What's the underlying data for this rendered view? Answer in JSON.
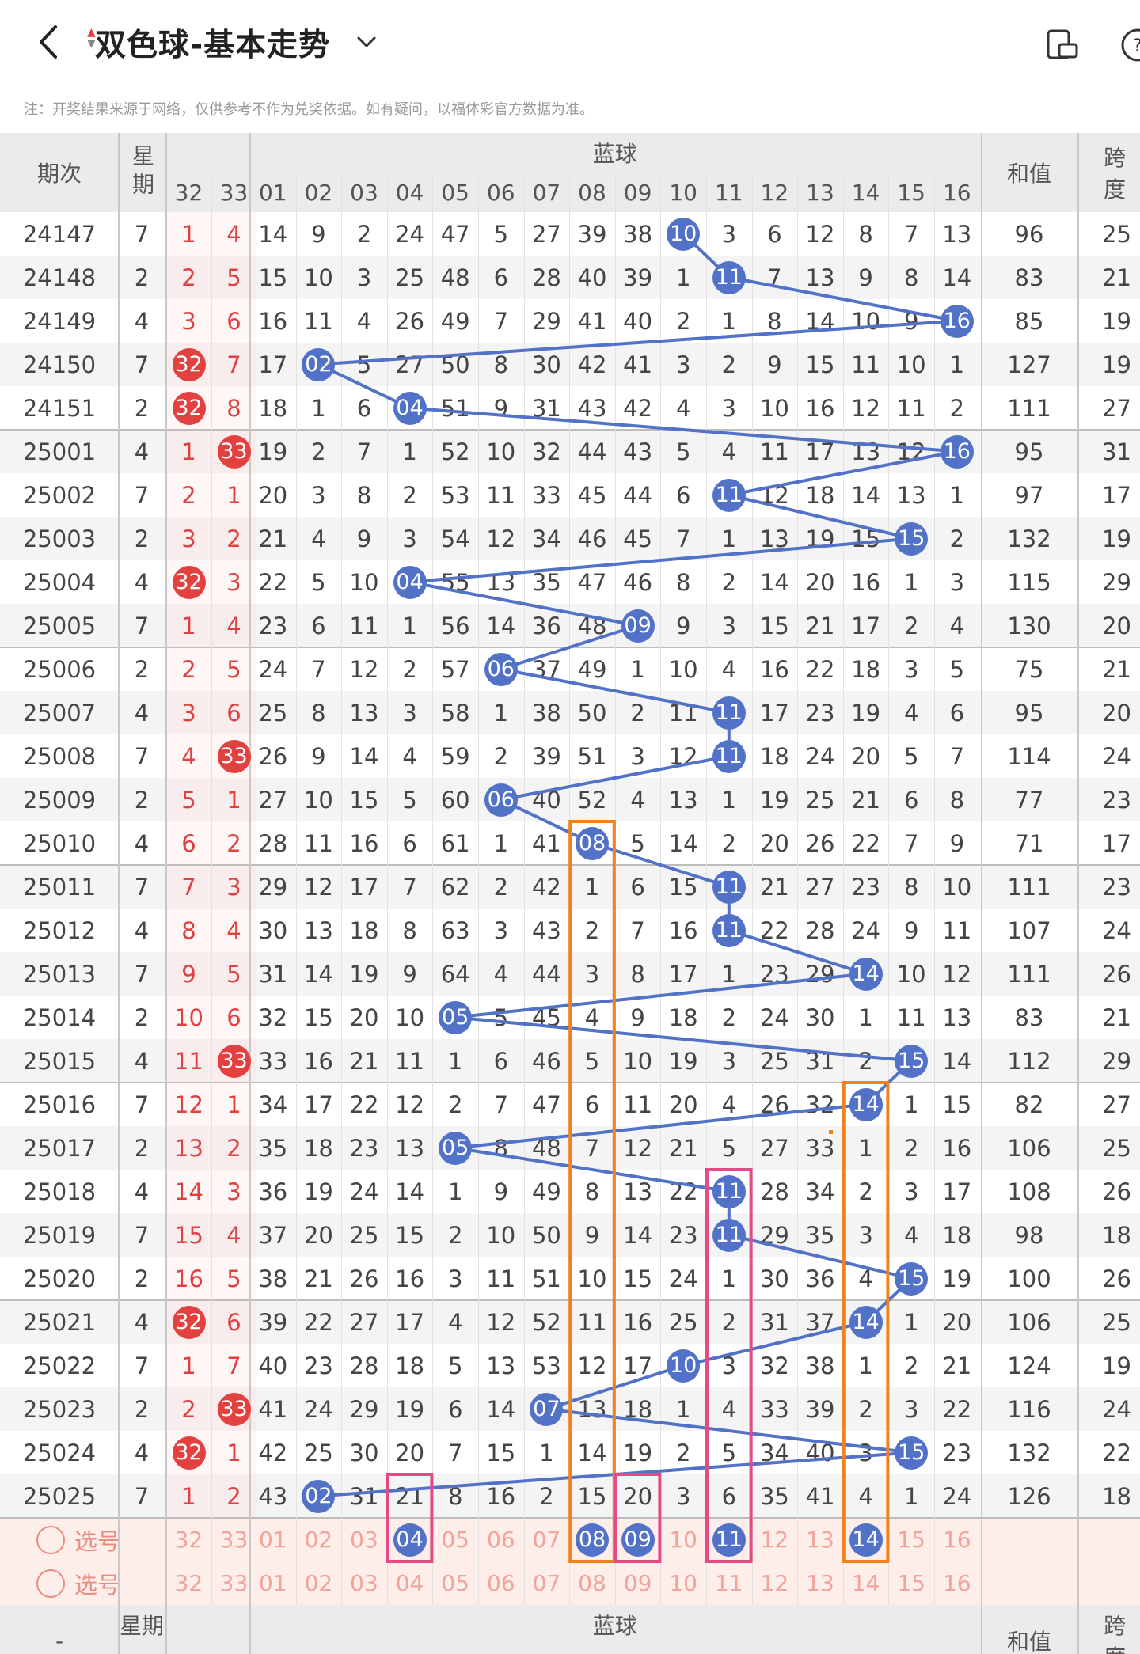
{
  "header": {
    "title": "双色球-基本走势",
    "back_icon": "back-arrow-icon",
    "dropdown_icon": "chevron-down-icon",
    "right_icons": [
      "screen-rotate-icon",
      "help-icon"
    ]
  },
  "note": "注：开奖结果来源于网络，仅供参考不作为兑奖依据。如有疑问，以福体彩官方数据为准。",
  "table": {
    "col_issue": "期次",
    "col_week": "星期",
    "col_blue_group": "蓝球",
    "col_sum": "和值",
    "col_span": "跨度",
    "red_cols": [
      "32",
      "33"
    ],
    "blue_cols": [
      "01",
      "02",
      "03",
      "04",
      "05",
      "06",
      "07",
      "08",
      "09",
      "10",
      "11",
      "12",
      "13",
      "14",
      "15",
      "16"
    ],
    "rows": [
      {
        "issue": "24147",
        "week": "7",
        "r32": "1",
        "r33": "4",
        "r32ball": false,
        "r33ball": false,
        "blue": [
          "14",
          "9",
          "2",
          "24",
          "47",
          "5",
          "27",
          "39",
          "38",
          "10",
          "3",
          "6",
          "12",
          "8",
          "7",
          "13"
        ],
        "hit": 10,
        "sum": "96",
        "span": "25"
      },
      {
        "issue": "24148",
        "week": "2",
        "r32": "2",
        "r33": "5",
        "r32ball": false,
        "r33ball": false,
        "blue": [
          "15",
          "10",
          "3",
          "25",
          "48",
          "6",
          "28",
          "40",
          "39",
          "1",
          "11",
          "7",
          "13",
          "9",
          "8",
          "14"
        ],
        "hit": 11,
        "sum": "83",
        "span": "21"
      },
      {
        "issue": "24149",
        "week": "4",
        "r32": "3",
        "r33": "6",
        "r32ball": false,
        "r33ball": false,
        "blue": [
          "16",
          "11",
          "4",
          "26",
          "49",
          "7",
          "29",
          "41",
          "40",
          "2",
          "1",
          "8",
          "14",
          "10",
          "9",
          "16"
        ],
        "hit": 16,
        "sum": "85",
        "span": "19"
      },
      {
        "issue": "24150",
        "week": "7",
        "r32": "32",
        "r33": "7",
        "r32ball": true,
        "r33ball": false,
        "blue": [
          "17",
          "02",
          "5",
          "27",
          "50",
          "8",
          "30",
          "42",
          "41",
          "3",
          "2",
          "9",
          "15",
          "11",
          "10",
          "1"
        ],
        "hit": 2,
        "sum": "127",
        "span": "19"
      },
      {
        "issue": "24151",
        "week": "2",
        "r32": "32",
        "r33": "8",
        "r32ball": true,
        "r33ball": false,
        "blue": [
          "18",
          "1",
          "6",
          "04",
          "51",
          "9",
          "31",
          "43",
          "42",
          "4",
          "3",
          "10",
          "16",
          "12",
          "11",
          "2"
        ],
        "hit": 4,
        "sum": "111",
        "span": "27"
      },
      {
        "issue": "25001",
        "week": "4",
        "r32": "1",
        "r33": "33",
        "r32ball": false,
        "r33ball": true,
        "blue": [
          "19",
          "2",
          "7",
          "1",
          "52",
          "10",
          "32",
          "44",
          "43",
          "5",
          "4",
          "11",
          "17",
          "13",
          "12",
          "16"
        ],
        "hit": 16,
        "sum": "95",
        "span": "31"
      },
      {
        "issue": "25002",
        "week": "7",
        "r32": "2",
        "r33": "1",
        "r32ball": false,
        "r33ball": false,
        "blue": [
          "20",
          "3",
          "8",
          "2",
          "53",
          "11",
          "33",
          "45",
          "44",
          "6",
          "11",
          "12",
          "18",
          "14",
          "13",
          "1"
        ],
        "hit": 11,
        "sum": "97",
        "span": "17"
      },
      {
        "issue": "25003",
        "week": "2",
        "r32": "3",
        "r33": "2",
        "r32ball": false,
        "r33ball": false,
        "blue": [
          "21",
          "4",
          "9",
          "3",
          "54",
          "12",
          "34",
          "46",
          "45",
          "7",
          "1",
          "13",
          "19",
          "15",
          "15",
          "2"
        ],
        "hit": 15,
        "sum": "132",
        "span": "19"
      },
      {
        "issue": "25004",
        "week": "4",
        "r32": "32",
        "r33": "3",
        "r32ball": true,
        "r33ball": false,
        "blue": [
          "22",
          "5",
          "10",
          "04",
          "55",
          "13",
          "35",
          "47",
          "46",
          "8",
          "2",
          "14",
          "20",
          "16",
          "1",
          "3"
        ],
        "hit": 4,
        "sum": "115",
        "span": "29"
      },
      {
        "issue": "25005",
        "week": "7",
        "r32": "1",
        "r33": "4",
        "r32ball": false,
        "r33ball": false,
        "blue": [
          "23",
          "6",
          "11",
          "1",
          "56",
          "14",
          "36",
          "48",
          "09",
          "9",
          "3",
          "15",
          "21",
          "17",
          "2",
          "4"
        ],
        "hit": 9,
        "sum": "130",
        "span": "20"
      },
      {
        "issue": "25006",
        "week": "2",
        "r32": "2",
        "r33": "5",
        "r32ball": false,
        "r33ball": false,
        "blue": [
          "24",
          "7",
          "12",
          "2",
          "57",
          "06",
          "37",
          "49",
          "1",
          "10",
          "4",
          "16",
          "22",
          "18",
          "3",
          "5"
        ],
        "hit": 6,
        "sum": "75",
        "span": "21"
      },
      {
        "issue": "25007",
        "week": "4",
        "r32": "3",
        "r33": "6",
        "r32ball": false,
        "r33ball": false,
        "blue": [
          "25",
          "8",
          "13",
          "3",
          "58",
          "1",
          "38",
          "50",
          "2",
          "11",
          "11",
          "17",
          "23",
          "19",
          "4",
          "6"
        ],
        "hit": 11,
        "sum": "95",
        "span": "20"
      },
      {
        "issue": "25008",
        "week": "7",
        "r32": "4",
        "r33": "33",
        "r32ball": false,
        "r33ball": true,
        "blue": [
          "26",
          "9",
          "14",
          "4",
          "59",
          "2",
          "39",
          "51",
          "3",
          "12",
          "11",
          "18",
          "24",
          "20",
          "5",
          "7"
        ],
        "hit": 11,
        "sum": "114",
        "span": "24"
      },
      {
        "issue": "25009",
        "week": "2",
        "r32": "5",
        "r33": "1",
        "r32ball": false,
        "r33ball": false,
        "blue": [
          "27",
          "10",
          "15",
          "5",
          "60",
          "06",
          "40",
          "52",
          "4",
          "13",
          "1",
          "19",
          "25",
          "21",
          "6",
          "8"
        ],
        "hit": 6,
        "sum": "77",
        "span": "23"
      },
      {
        "issue": "25010",
        "week": "4",
        "r32": "6",
        "r33": "2",
        "r32ball": false,
        "r33ball": false,
        "blue": [
          "28",
          "11",
          "16",
          "6",
          "61",
          "1",
          "41",
          "08",
          "5",
          "14",
          "2",
          "20",
          "26",
          "22",
          "7",
          "9"
        ],
        "hit": 8,
        "sum": "71",
        "span": "17"
      },
      {
        "issue": "25011",
        "week": "7",
        "r32": "7",
        "r33": "3",
        "r32ball": false,
        "r33ball": false,
        "blue": [
          "29",
          "12",
          "17",
          "7",
          "62",
          "2",
          "42",
          "1",
          "6",
          "15",
          "11",
          "21",
          "27",
          "23",
          "8",
          "10"
        ],
        "hit": 11,
        "sum": "111",
        "span": "23"
      },
      {
        "issue": "25012",
        "week": "4",
        "r32": "8",
        "r33": "4",
        "r32ball": false,
        "r33ball": false,
        "blue": [
          "30",
          "13",
          "18",
          "8",
          "63",
          "3",
          "43",
          "2",
          "7",
          "16",
          "11",
          "22",
          "28",
          "24",
          "9",
          "11"
        ],
        "hit": 11,
        "sum": "107",
        "span": "24"
      },
      {
        "issue": "25013",
        "week": "7",
        "r32": "9",
        "r33": "5",
        "r32ball": false,
        "r33ball": false,
        "blue": [
          "31",
          "14",
          "19",
          "9",
          "64",
          "4",
          "44",
          "3",
          "8",
          "17",
          "1",
          "23",
          "29",
          "14",
          "10",
          "12"
        ],
        "hit": 14,
        "sum": "111",
        "span": "26"
      },
      {
        "issue": "25014",
        "week": "2",
        "r32": "10",
        "r33": "6",
        "r32ball": false,
        "r33ball": false,
        "blue": [
          "32",
          "15",
          "20",
          "10",
          "05",
          "5",
          "45",
          "4",
          "9",
          "18",
          "2",
          "24",
          "30",
          "1",
          "11",
          "13"
        ],
        "hit": 5,
        "sum": "83",
        "span": "21"
      },
      {
        "issue": "25015",
        "week": "4",
        "r32": "11",
        "r33": "33",
        "r32ball": false,
        "r33ball": true,
        "blue": [
          "33",
          "16",
          "21",
          "11",
          "1",
          "6",
          "46",
          "5",
          "10",
          "19",
          "3",
          "25",
          "31",
          "2",
          "15",
          "14"
        ],
        "hit": 15,
        "sum": "112",
        "span": "29"
      },
      {
        "issue": "25016",
        "week": "7",
        "r32": "12",
        "r33": "1",
        "r32ball": false,
        "r33ball": false,
        "blue": [
          "34",
          "17",
          "22",
          "12",
          "2",
          "7",
          "47",
          "6",
          "11",
          "20",
          "4",
          "26",
          "32",
          "14",
          "1",
          "15"
        ],
        "hit": 14,
        "sum": "82",
        "span": "27"
      },
      {
        "issue": "25017",
        "week": "2",
        "r32": "13",
        "r33": "2",
        "r32ball": false,
        "r33ball": false,
        "blue": [
          "35",
          "18",
          "23",
          "13",
          "05",
          "8",
          "48",
          "7",
          "12",
          "21",
          "5",
          "27",
          "33",
          "1",
          "2",
          "16"
        ],
        "hit": 5,
        "sum": "106",
        "span": "25"
      },
      {
        "issue": "25018",
        "week": "4",
        "r32": "14",
        "r33": "3",
        "r32ball": false,
        "r33ball": false,
        "blue": [
          "36",
          "19",
          "24",
          "14",
          "1",
          "9",
          "49",
          "8",
          "13",
          "22",
          "11",
          "28",
          "34",
          "2",
          "3",
          "17"
        ],
        "hit": 11,
        "sum": "108",
        "span": "26"
      },
      {
        "issue": "25019",
        "week": "7",
        "r32": "15",
        "r33": "4",
        "r32ball": false,
        "r33ball": false,
        "blue": [
          "37",
          "20",
          "25",
          "15",
          "2",
          "10",
          "50",
          "9",
          "14",
          "23",
          "11",
          "29",
          "35",
          "3",
          "4",
          "18"
        ],
        "hit": 11,
        "sum": "98",
        "span": "18"
      },
      {
        "issue": "25020",
        "week": "2",
        "r32": "16",
        "r33": "5",
        "r32ball": false,
        "r33ball": false,
        "blue": [
          "38",
          "21",
          "26",
          "16",
          "3",
          "11",
          "51",
          "10",
          "15",
          "24",
          "1",
          "30",
          "36",
          "4",
          "15",
          "19"
        ],
        "hit": 15,
        "sum": "100",
        "span": "26"
      },
      {
        "issue": "25021",
        "week": "4",
        "r32": "32",
        "r33": "6",
        "r32ball": true,
        "r33ball": false,
        "blue": [
          "39",
          "22",
          "27",
          "17",
          "4",
          "12",
          "52",
          "11",
          "16",
          "25",
          "2",
          "31",
          "37",
          "14",
          "1",
          "20"
        ],
        "hit": 14,
        "sum": "106",
        "span": "25"
      },
      {
        "issue": "25022",
        "week": "7",
        "r32": "1",
        "r33": "7",
        "r32ball": false,
        "r33ball": false,
        "blue": [
          "40",
          "23",
          "28",
          "18",
          "5",
          "13",
          "53",
          "12",
          "17",
          "10",
          "3",
          "32",
          "38",
          "1",
          "2",
          "21"
        ],
        "hit": 10,
        "sum": "124",
        "span": "19"
      },
      {
        "issue": "25023",
        "week": "2",
        "r32": "2",
        "r33": "33",
        "r32ball": false,
        "r33ball": true,
        "blue": [
          "41",
          "24",
          "29",
          "19",
          "6",
          "14",
          "07",
          "13",
          "18",
          "1",
          "4",
          "33",
          "39",
          "2",
          "3",
          "22"
        ],
        "hit": 7,
        "sum": "116",
        "span": "24"
      },
      {
        "issue": "25024",
        "week": "4",
        "r32": "32",
        "r33": "1",
        "r32ball": true,
        "r33ball": false,
        "blue": [
          "42",
          "25",
          "30",
          "20",
          "7",
          "15",
          "1",
          "14",
          "19",
          "2",
          "5",
          "34",
          "40",
          "3",
          "15",
          "23"
        ],
        "hit": 15,
        "sum": "132",
        "span": "22"
      },
      {
        "issue": "25025",
        "week": "7",
        "r32": "1",
        "r33": "2",
        "r32ball": false,
        "r33ball": false,
        "blue": [
          "43",
          "02",
          "31",
          "21",
          "8",
          "16",
          "2",
          "15",
          "20",
          "3",
          "6",
          "35",
          "41",
          "4",
          "1",
          "24"
        ],
        "hit": 2,
        "sum": "126",
        "span": "18"
      }
    ],
    "pick_label": "选号",
    "pick_selected": [
      "04",
      "08",
      "09",
      "11",
      "14"
    ],
    "footer_issue": "-",
    "footer_week": "星期",
    "footer_blue": "蓝球",
    "footer_sum": "和值",
    "footer_span": "跨度"
  },
  "colors": {
    "blue_ball": "#5272c8",
    "red_ball": "#e34040",
    "red_text": "#e04040",
    "orange_box": "#f0821e",
    "pink_box": "#e34a86",
    "pick_bg": "#fdeeea"
  }
}
